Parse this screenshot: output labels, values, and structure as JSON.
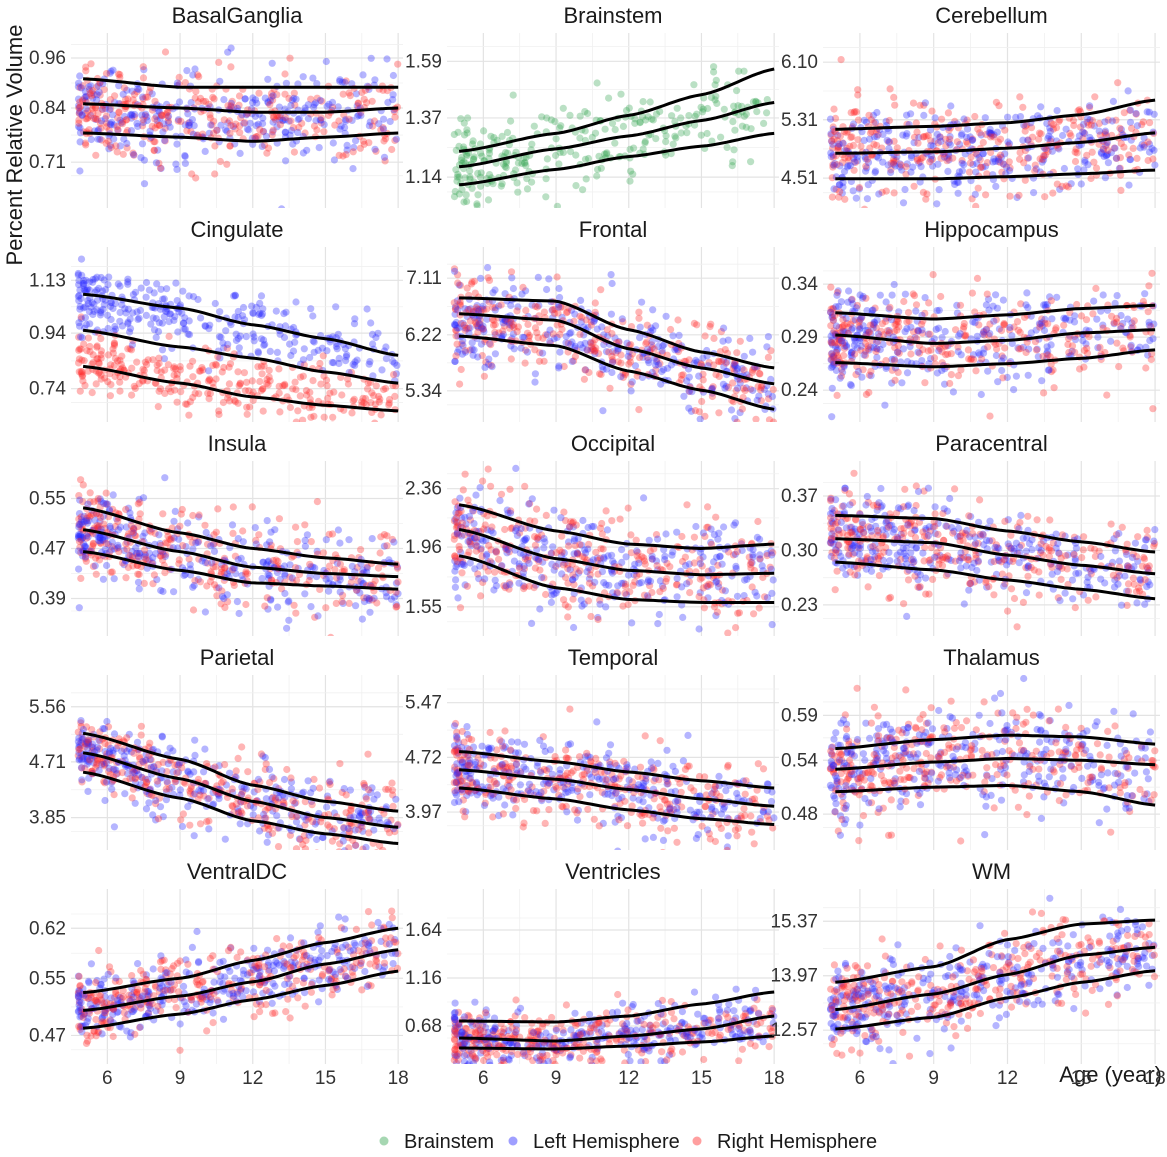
{
  "chart_data": {
    "type": "scatter",
    "ylabel": "Percent Relative Volume",
    "xlabel": "Age (year)",
    "xlim": [
      4.5,
      18.2
    ],
    "x_ticks": [
      6,
      9,
      12,
      15,
      18
    ],
    "x_tick_labels": [
      "6",
      "9",
      "12",
      "15",
      "18"
    ],
    "grid": true,
    "legend": {
      "placement": "bottom",
      "entries": [
        {
          "name": "Brainstem",
          "color": "#3aa655"
        },
        {
          "name": "Left Hemisphere",
          "color": "#2b2bff"
        },
        {
          "name": "Right Hemisphere",
          "color": "#ff2b2b"
        }
      ]
    },
    "curve_color": "#000000",
    "note_curves": "Three smoothed percentile curves per panel (lower, median, upper), values given at x = 5, 9, 12, 15, 18",
    "curve_x": [
      5,
      9,
      12,
      15,
      18
    ],
    "panels": [
      {
        "title": "BasalGanglia",
        "ylim": [
          0.6,
          1.02
        ],
        "y_ticks": [
          0.71,
          0.84,
          0.96
        ],
        "y_tick_labels": [
          "0.71",
          "0.84",
          "0.96"
        ],
        "series": [
          "left",
          "right"
        ],
        "center": [
          0.84,
          0.82,
          0.82,
          0.82,
          0.83
        ],
        "spread": 0.055,
        "curves": [
          [
            0.78,
            0.77,
            0.76,
            0.77,
            0.78
          ],
          [
            0.85,
            0.84,
            0.83,
            0.83,
            0.84
          ],
          [
            0.91,
            0.89,
            0.89,
            0.89,
            0.89
          ]
        ]
      },
      {
        "title": "Brainstem",
        "ylim": [
          1.02,
          1.7
        ],
        "y_ticks": [
          1.14,
          1.37,
          1.59
        ],
        "y_tick_labels": [
          "1.14",
          "1.37",
          "1.59"
        ],
        "series": [
          "brainstem"
        ],
        "center": [
          1.17,
          1.24,
          1.3,
          1.36,
          1.43
        ],
        "spread": 0.08,
        "curves": [
          [
            1.11,
            1.17,
            1.22,
            1.26,
            1.31
          ],
          [
            1.18,
            1.25,
            1.3,
            1.36,
            1.43
          ],
          [
            1.24,
            1.31,
            1.38,
            1.46,
            1.56
          ]
        ]
      },
      {
        "title": "Cerebellum",
        "ylim": [
          4.1,
          6.5
        ],
        "y_ticks": [
          4.51,
          5.31,
          6.1
        ],
        "y_tick_labels": [
          "4.51",
          "5.31",
          "6.10"
        ],
        "series": [
          "left",
          "right"
        ],
        "center": [
          4.88,
          4.88,
          4.92,
          5.0,
          5.1
        ],
        "spread": 0.32,
        "curves": [
          [
            4.5,
            4.5,
            4.53,
            4.57,
            4.62
          ],
          [
            4.85,
            4.87,
            4.92,
            5.0,
            5.13
          ],
          [
            5.18,
            5.22,
            5.27,
            5.38,
            5.58
          ]
        ]
      },
      {
        "title": "Cingulate",
        "ylim": [
          0.62,
          1.25
        ],
        "y_ticks": [
          0.74,
          0.94,
          1.13
        ],
        "y_tick_labels": [
          "0.74",
          "0.94",
          "1.13"
        ],
        "series": [
          "left",
          "right"
        ],
        "center_left": [
          1.06,
          1.0,
          0.95,
          0.9,
          0.86
        ],
        "center_right": [
          0.83,
          0.78,
          0.74,
          0.71,
          0.68
        ],
        "spread": 0.06,
        "curves": [
          [
            0.82,
            0.76,
            0.71,
            0.68,
            0.66
          ],
          [
            0.95,
            0.89,
            0.85,
            0.8,
            0.76
          ],
          [
            1.08,
            1.03,
            0.97,
            0.92,
            0.86
          ]
        ]
      },
      {
        "title": "Frontal",
        "ylim": [
          4.85,
          7.6
        ],
        "y_ticks": [
          5.34,
          6.22,
          7.11
        ],
        "y_tick_labels": [
          "5.34",
          "6.22",
          "7.11"
        ],
        "series": [
          "left",
          "right"
        ],
        "center": [
          6.45,
          6.35,
          5.95,
          5.65,
          5.45
        ],
        "spread": 0.35,
        "curves": [
          [
            6.2,
            6.05,
            5.65,
            5.35,
            5.05
          ],
          [
            6.55,
            6.45,
            6.0,
            5.7,
            5.45
          ],
          [
            6.8,
            6.75,
            6.3,
            5.95,
            5.7
          ]
        ]
      },
      {
        "title": "Hippocampus",
        "ylim": [
          0.21,
          0.375
        ],
        "y_ticks": [
          0.24,
          0.29,
          0.34
        ],
        "y_tick_labels": [
          "0.24",
          "0.29",
          "0.34"
        ],
        "series": [
          "left",
          "right"
        ],
        "center": [
          0.29,
          0.285,
          0.29,
          0.295,
          0.3
        ],
        "spread": 0.022,
        "curves": [
          [
            0.266,
            0.262,
            0.265,
            0.27,
            0.278
          ],
          [
            0.292,
            0.284,
            0.287,
            0.294,
            0.297
          ],
          [
            0.313,
            0.307,
            0.311,
            0.317,
            0.32
          ]
        ]
      },
      {
        "title": "Insula",
        "ylim": [
          0.33,
          0.61
        ],
        "y_ticks": [
          0.39,
          0.47,
          0.55
        ],
        "y_tick_labels": [
          "0.39",
          "0.47",
          "0.55"
        ],
        "series": [
          "left",
          "right"
        ],
        "center": [
          0.5,
          0.46,
          0.44,
          0.43,
          0.43
        ],
        "spread": 0.035,
        "curves": [
          [
            0.465,
            0.435,
            0.415,
            0.41,
            0.405
          ],
          [
            0.5,
            0.465,
            0.44,
            0.43,
            0.425
          ],
          [
            0.535,
            0.495,
            0.47,
            0.455,
            0.445
          ]
        ]
      },
      {
        "title": "Occipital",
        "ylim": [
          1.35,
          2.55
        ],
        "y_ticks": [
          1.55,
          1.96,
          2.36
        ],
        "y_tick_labels": [
          "1.55",
          "1.96",
          "2.36"
        ],
        "series": [
          "left",
          "right"
        ],
        "center": [
          2.05,
          1.88,
          1.8,
          1.78,
          1.78
        ],
        "spread": 0.18,
        "curves": [
          [
            1.9,
            1.68,
            1.6,
            1.58,
            1.58
          ],
          [
            2.08,
            1.88,
            1.8,
            1.77,
            1.78
          ],
          [
            2.25,
            2.07,
            1.98,
            1.95,
            1.98
          ]
        ]
      },
      {
        "title": "Paracentral",
        "ylim": [
          0.19,
          0.415
        ],
        "y_ticks": [
          0.23,
          0.3,
          0.37
        ],
        "y_tick_labels": [
          "0.23",
          "0.30",
          "0.37"
        ],
        "series": [
          "left",
          "right"
        ],
        "center": [
          0.315,
          0.31,
          0.295,
          0.28,
          0.27
        ],
        "spread": 0.03,
        "curves": [
          [
            0.285,
            0.275,
            0.262,
            0.25,
            0.238
          ],
          [
            0.315,
            0.31,
            0.294,
            0.281,
            0.27
          ],
          [
            0.345,
            0.341,
            0.325,
            0.311,
            0.298
          ]
        ]
      },
      {
        "title": "Parietal",
        "ylim": [
          3.35,
          6.05
        ],
        "y_ticks": [
          3.85,
          4.71,
          5.56
        ],
        "y_tick_labels": [
          "3.85",
          "4.71",
          "5.56"
        ],
        "series": [
          "left",
          "right"
        ],
        "center": [
          4.85,
          4.45,
          4.1,
          3.85,
          3.75
        ],
        "spread": 0.3,
        "curves": [
          [
            4.55,
            4.15,
            3.8,
            3.6,
            3.45
          ],
          [
            4.85,
            4.45,
            4.1,
            3.85,
            3.7
          ],
          [
            5.15,
            4.75,
            4.35,
            4.1,
            3.95
          ]
        ]
      },
      {
        "title": "Temporal",
        "ylim": [
          3.45,
          5.85
        ],
        "y_ticks": [
          3.97,
          4.72,
          5.47
        ],
        "y_tick_labels": [
          "3.97",
          "4.72",
          "5.47"
        ],
        "series": [
          "left",
          "right"
        ],
        "center": [
          4.55,
          4.42,
          4.28,
          4.15,
          4.05
        ],
        "spread": 0.28,
        "curves": [
          [
            4.3,
            4.15,
            4.0,
            3.88,
            3.8
          ],
          [
            4.55,
            4.42,
            4.28,
            4.15,
            4.05
          ],
          [
            4.8,
            4.66,
            4.52,
            4.4,
            4.3
          ]
        ]
      },
      {
        "title": "Thalamus",
        "ylim": [
          0.44,
          0.635
        ],
        "y_ticks": [
          0.48,
          0.54,
          0.59
        ],
        "y_tick_labels": [
          "0.48",
          "0.54",
          "0.59"
        ],
        "series": [
          "left",
          "right"
        ],
        "center": [
          0.53,
          0.54,
          0.545,
          0.54,
          0.53
        ],
        "spread": 0.028,
        "curves": [
          [
            0.505,
            0.51,
            0.512,
            0.505,
            0.49
          ],
          [
            0.53,
            0.538,
            0.542,
            0.54,
            0.535
          ],
          [
            0.553,
            0.563,
            0.568,
            0.566,
            0.558
          ]
        ]
      },
      {
        "title": "VentralDC",
        "ylim": [
          0.43,
          0.675
        ],
        "y_ticks": [
          0.47,
          0.55,
          0.62
        ],
        "y_tick_labels": [
          "0.47",
          "0.55",
          "0.62"
        ],
        "series": [
          "left",
          "right"
        ],
        "center": [
          0.51,
          0.53,
          0.55,
          0.57,
          0.59
        ],
        "spread": 0.025,
        "curves": [
          [
            0.48,
            0.5,
            0.52,
            0.54,
            0.56
          ],
          [
            0.505,
            0.525,
            0.545,
            0.57,
            0.59
          ],
          [
            0.53,
            0.55,
            0.575,
            0.6,
            0.62
          ]
        ]
      },
      {
        "title": "Ventricles",
        "ylim": [
          0.3,
          2.05
        ],
        "y_ticks": [
          0.68,
          1.16,
          1.64
        ],
        "y_tick_labels": [
          "0.68",
          "1.16",
          "1.64"
        ],
        "series": [
          "left",
          "right"
        ],
        "center": [
          0.55,
          0.52,
          0.58,
          0.65,
          0.75
        ],
        "spread": 0.15,
        "curves": [
          [
            0.46,
            0.45,
            0.48,
            0.52,
            0.58
          ],
          [
            0.56,
            0.53,
            0.58,
            0.65,
            0.78
          ],
          [
            0.73,
            0.72,
            0.78,
            0.9,
            1.02
          ]
        ]
      },
      {
        "title": "WM",
        "ylim": [
          11.7,
          16.2
        ],
        "y_ticks": [
          12.57,
          13.97,
          15.37
        ],
        "y_tick_labels": [
          "12.57",
          "13.97",
          "15.37"
        ],
        "series": [
          "left",
          "right"
        ],
        "center": [
          13.2,
          13.5,
          14.0,
          14.4,
          14.6
        ],
        "spread": 0.55,
        "curves": [
          [
            12.6,
            12.9,
            13.4,
            13.8,
            14.1
          ],
          [
            13.1,
            13.5,
            14.0,
            14.5,
            14.7
          ],
          [
            13.8,
            14.2,
            14.9,
            15.3,
            15.4
          ]
        ]
      }
    ]
  }
}
